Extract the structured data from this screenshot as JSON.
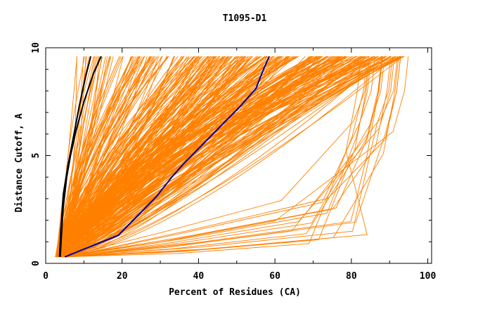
{
  "chart_data": {
    "type": "line",
    "title": "T1095-D1",
    "xlabel": "Percent of Residues (CA)",
    "ylabel": "Distance Cutoff, A",
    "xlim": [
      0,
      101
    ],
    "ylim": [
      0,
      10
    ],
    "xticks": [
      0,
      20,
      40,
      60,
      80,
      100
    ],
    "yticks": [
      0,
      5,
      10
    ],
    "grid": false,
    "colors": {
      "models": "#ff8000",
      "black": "#000000",
      "blue": "#0000a0"
    },
    "highlight_series": [
      {
        "color": "#000000",
        "points": [
          [
            3.8,
            0.3
          ],
          [
            4.2,
            1.5
          ],
          [
            4.6,
            2.6
          ],
          [
            5.5,
            4.0
          ],
          [
            6.5,
            5.0
          ],
          [
            8.0,
            6.2
          ],
          [
            10.0,
            7.5
          ],
          [
            12.5,
            8.8
          ],
          [
            14.5,
            9.6
          ]
        ]
      },
      {
        "color": "#000000",
        "points": [
          [
            3.6,
            0.3
          ],
          [
            4.0,
            1.6
          ],
          [
            4.6,
            3.2
          ],
          [
            5.8,
            4.5
          ],
          [
            7.2,
            5.8
          ],
          [
            8.8,
            7.3
          ],
          [
            10.5,
            8.7
          ],
          [
            11.8,
            9.6
          ]
        ]
      },
      {
        "color": "#0000a0",
        "points": [
          [
            5.0,
            0.3
          ],
          [
            12.0,
            0.8
          ],
          [
            19.0,
            1.3
          ],
          [
            24.0,
            2.2
          ],
          [
            29.0,
            3.1
          ],
          [
            33.0,
            4.0
          ],
          [
            36.0,
            4.6
          ],
          [
            41.0,
            5.5
          ],
          [
            46.0,
            6.4
          ],
          [
            51.0,
            7.3
          ],
          [
            55.0,
            8.1
          ],
          [
            57.0,
            9.0
          ],
          [
            58.5,
            9.6
          ]
        ]
      }
    ]
  }
}
